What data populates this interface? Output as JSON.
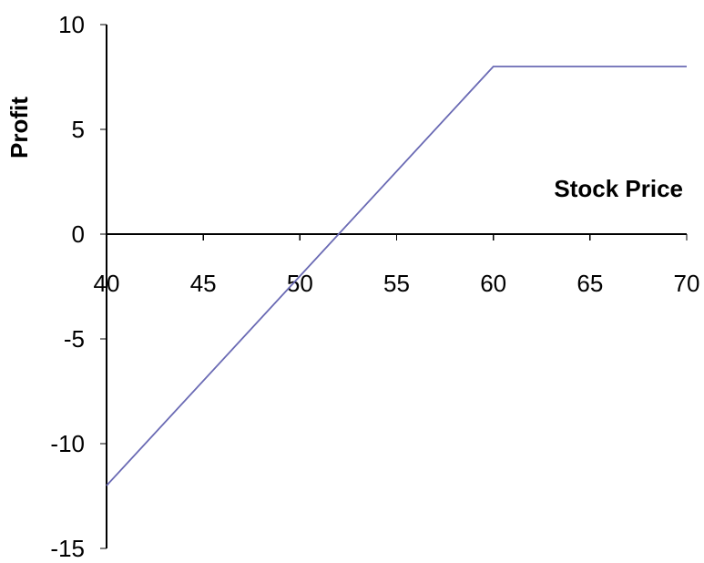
{
  "chart_data": {
    "type": "line",
    "title": "",
    "xlabel": "Stock Price",
    "ylabel": "Profit",
    "xlim": [
      40,
      70
    ],
    "ylim": [
      -15,
      10
    ],
    "x_ticks": [
      40,
      45,
      50,
      55,
      60,
      65,
      70
    ],
    "y_ticks": [
      10,
      5,
      0,
      -5,
      -10,
      -15
    ],
    "x_tick_labels": [
      "40",
      "45",
      "50",
      "55",
      "60",
      "65",
      "70"
    ],
    "y_tick_labels": [
      "10",
      "5",
      "0",
      "-5",
      "-10",
      "-15"
    ],
    "x_axis_crosses_at_y": 0,
    "grid": false,
    "legend": "none",
    "series": [
      {
        "color": "#6a6ab4",
        "x": [
          40,
          60,
          70
        ],
        "y": [
          -12,
          8,
          8
        ]
      }
    ]
  }
}
